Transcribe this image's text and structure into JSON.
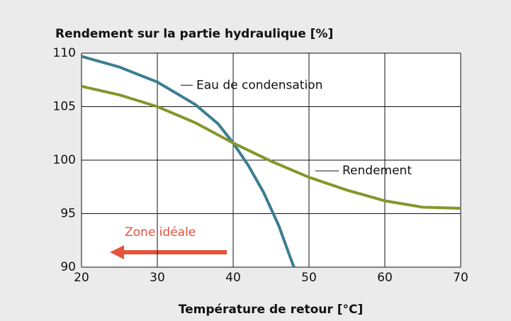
{
  "chart_data": {
    "type": "line",
    "title": "Rendement sur la partie hydraulique [%]",
    "x_label": "Température de retour [°C]",
    "xlim": [
      20,
      70
    ],
    "xticks": [
      20,
      30,
      40,
      50,
      60,
      70
    ],
    "ylim": [
      90,
      110
    ],
    "yticks": [
      90,
      95,
      100,
      105,
      110
    ],
    "grid": true,
    "series": [
      {
        "name": "Eau de condensation",
        "color": "#3b7d90",
        "x": [
          20,
          25,
          30,
          35,
          38,
          40,
          42,
          44,
          46,
          48
        ],
        "values": [
          109.7,
          108.7,
          107.3,
          105.2,
          103.4,
          101.6,
          99.5,
          97,
          93.9,
          90
        ]
      },
      {
        "name": "Rendement",
        "color": "#85962c",
        "x": [
          20,
          25,
          30,
          35,
          40,
          45,
          50,
          55,
          60,
          65,
          70
        ],
        "values": [
          106.9,
          106.1,
          105,
          103.5,
          101.6,
          99.9,
          98.4,
          97.2,
          96.2,
          95.6,
          95.5
        ]
      }
    ],
    "annotation": "Zone idéale"
  }
}
